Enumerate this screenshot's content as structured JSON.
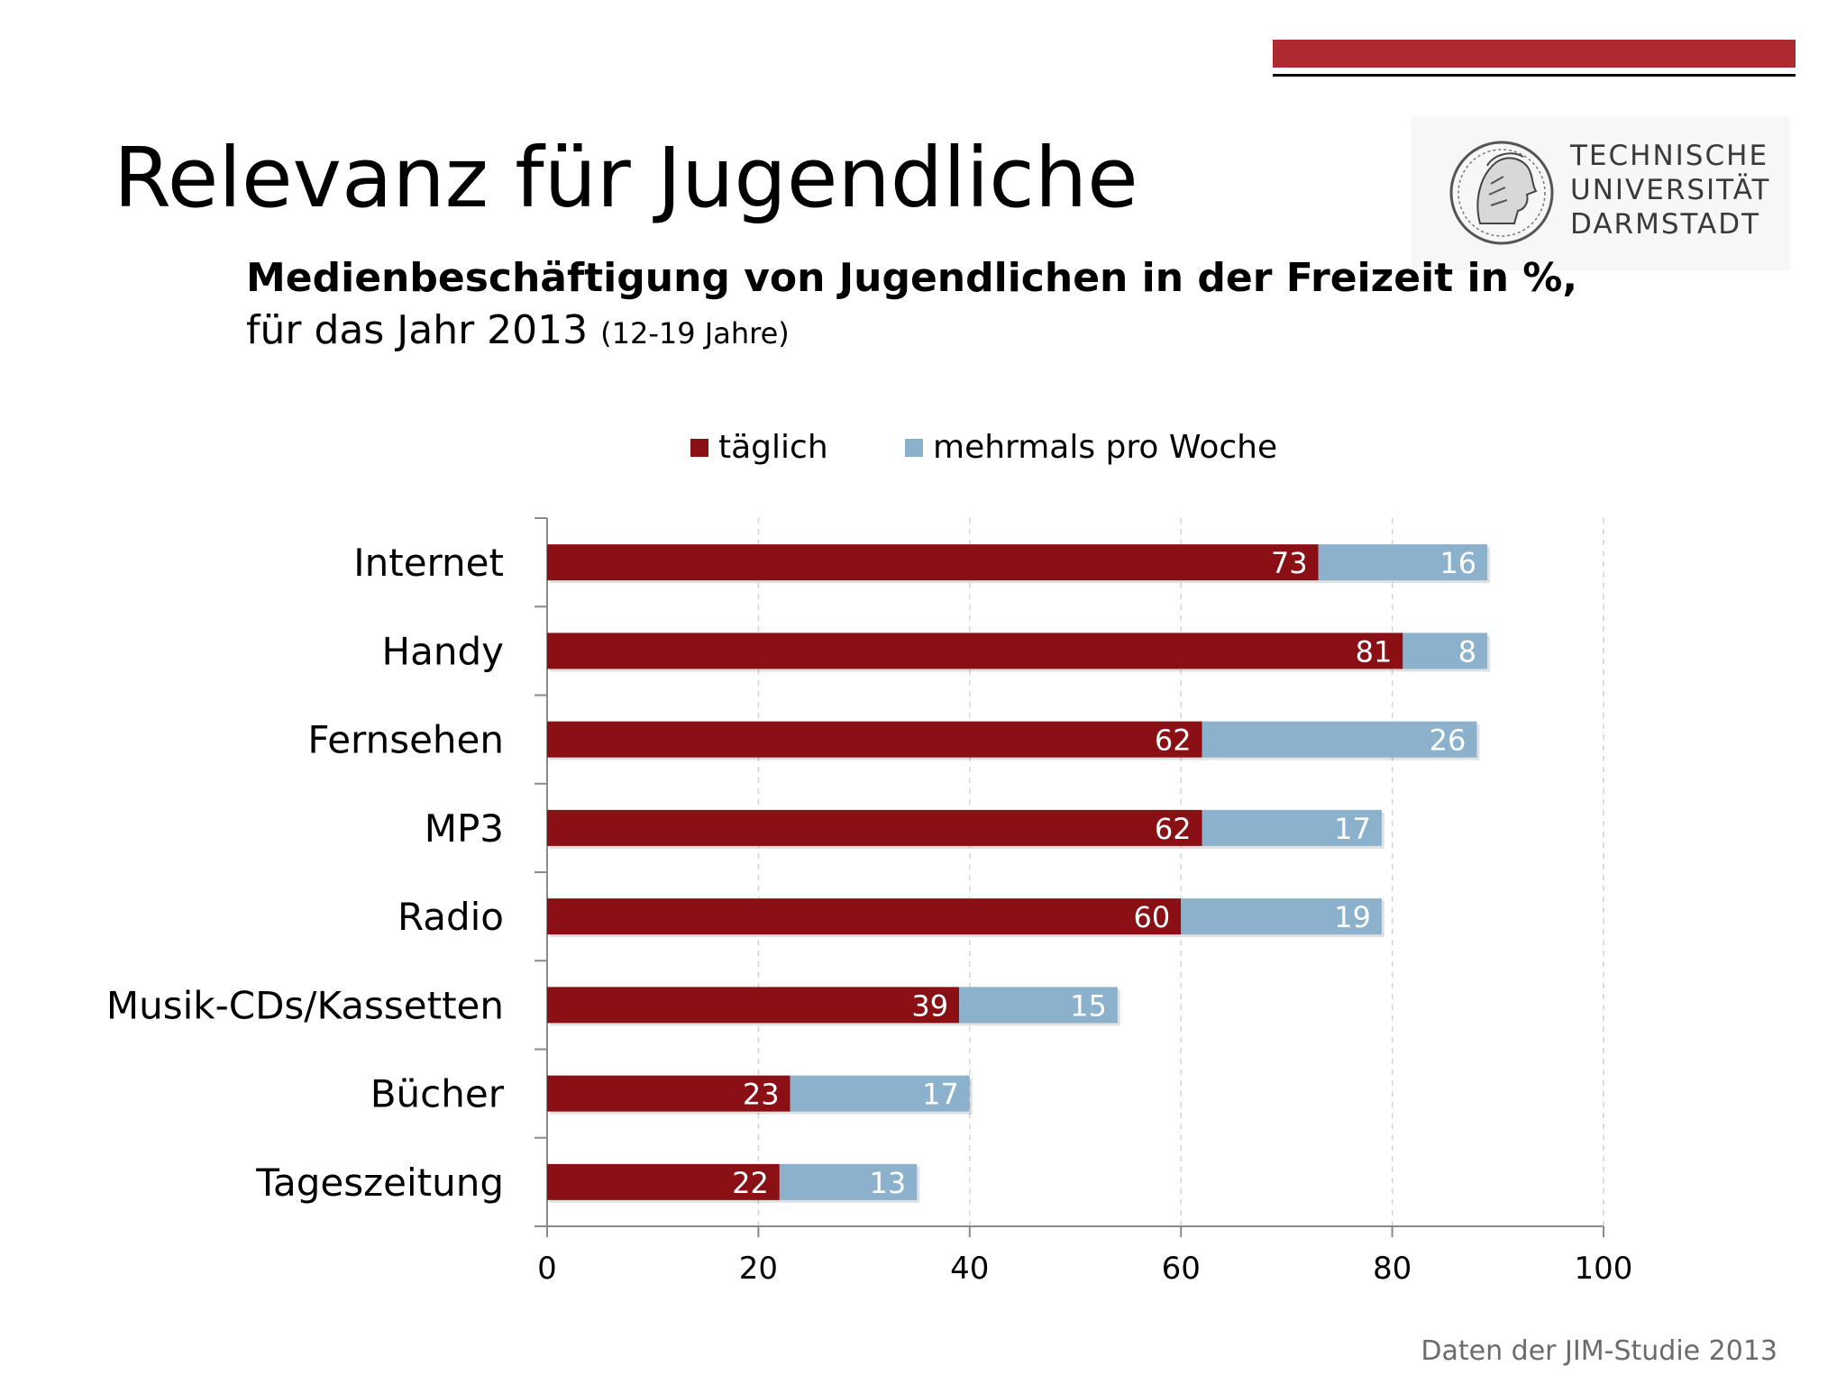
{
  "slide": {
    "title": "Relevanz für Jugendliche",
    "subtitle_bold": "Medienbeschäftigung von Jugendlichen in der Freizeit in %,",
    "subtitle_line2": "für das Jahr 2013",
    "subtitle_small": "(12-19 Jahre)",
    "source": "Daten der JIM-Studie 2013"
  },
  "logo": {
    "line1": "TECHNISCHE",
    "line2": "UNIVERSITÄT",
    "line3": "DARMSTADT"
  },
  "colors": {
    "accent_bar": "#ad2a31",
    "series_daily": "#8b1015",
    "series_weekly": "#8cb1cc"
  },
  "chart_data": {
    "type": "bar",
    "orientation": "horizontal",
    "stacked": true,
    "categories": [
      "Internet",
      "Handy",
      "Fernsehen",
      "MP3",
      "Radio",
      "Musik-CDs/Kassetten",
      "Bücher",
      "Tageszeitung"
    ],
    "series": [
      {
        "name": "täglich",
        "color": "#8b1015",
        "values": [
          73,
          81,
          62,
          62,
          60,
          39,
          23,
          22
        ]
      },
      {
        "name": "mehrmals pro Woche",
        "color": "#8cb1cc",
        "values": [
          16,
          8,
          26,
          17,
          19,
          15,
          17,
          13
        ]
      }
    ],
    "xlim": [
      0,
      100
    ],
    "xticks": [
      0,
      20,
      40,
      60,
      80,
      100
    ],
    "grid": true,
    "legend": "top"
  }
}
